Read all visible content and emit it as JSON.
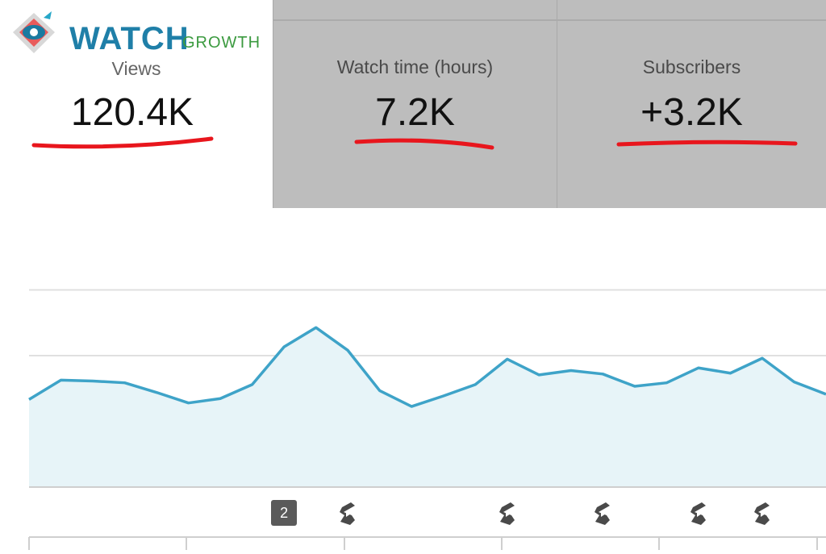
{
  "logo": {
    "primary_text": "WATCH",
    "secondary_text": "GROWTH",
    "icon": "eye-icon"
  },
  "tabs": [
    {
      "label": "Views",
      "value": "120.4K",
      "selected": true
    },
    {
      "label": "Watch time (hours)",
      "value": "7.2K",
      "selected": false
    },
    {
      "label": "Subscribers",
      "value": "+3.2K",
      "selected": false
    }
  ],
  "colors": {
    "underline": "#e8161d",
    "line": "#3ea3c8",
    "fill": "#e7f4f8",
    "grid": "#e0e0e0",
    "axis": "#cfcfcf",
    "tab_inactive": "#bdbdbd"
  },
  "chart_data": {
    "type": "area",
    "values": [
      500,
      610,
      605,
      595,
      540,
      480,
      505,
      585,
      800,
      910,
      780,
      550,
      460,
      520,
      585,
      730,
      640,
      665,
      645,
      575,
      595,
      680,
      650,
      735,
      600,
      530
    ],
    "ylim": [
      0,
      1500
    ],
    "grid": true,
    "markers": [
      {
        "type": "badge",
        "label": "2",
        "index": 8
      },
      {
        "type": "shorts-icon",
        "index": 10
      },
      {
        "type": "shorts-icon",
        "index": 15
      },
      {
        "type": "shorts-icon",
        "index": 18
      },
      {
        "type": "shorts-icon",
        "index": 21
      },
      {
        "type": "shorts-icon",
        "index": 23
      }
    ]
  }
}
